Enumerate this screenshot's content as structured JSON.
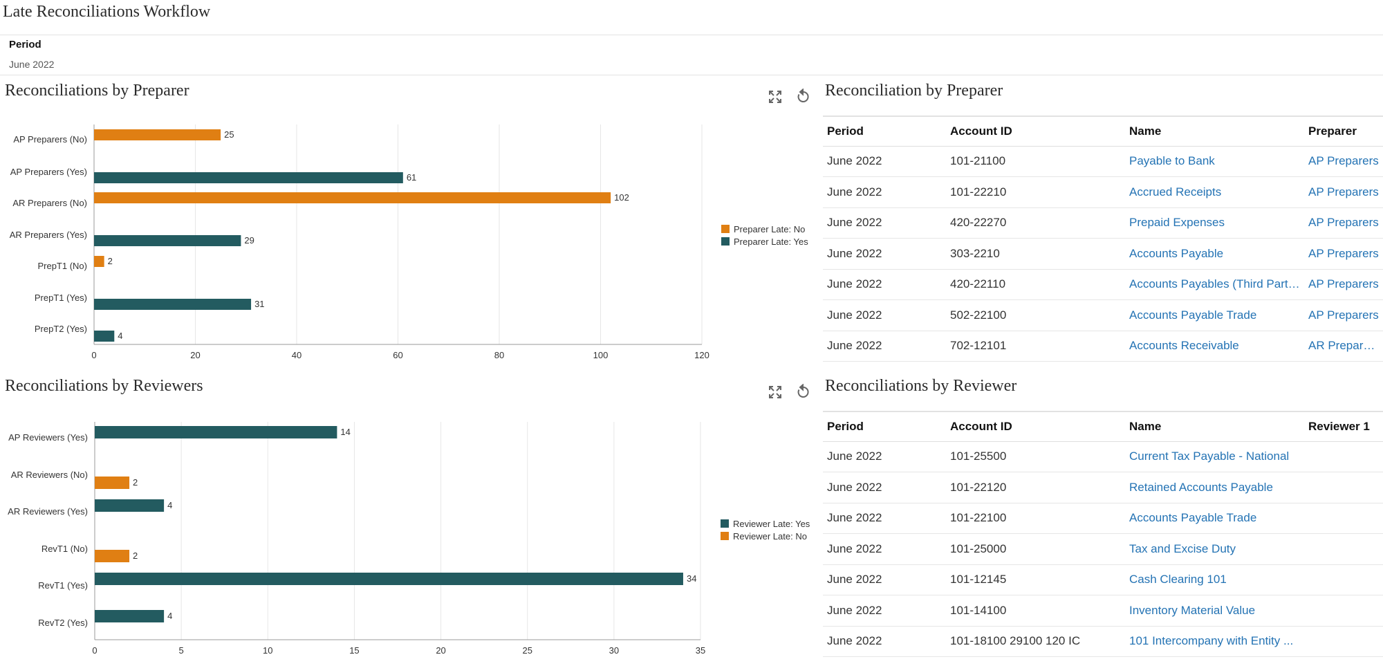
{
  "page": {
    "title": "Late Reconciliations Workflow",
    "period_label": "Period",
    "period_value": "June 2022"
  },
  "preparer_chart": {
    "title": "Reconciliations by Preparer",
    "expand_icon": "expand-icon",
    "refresh_icon": "refresh-icon"
  },
  "reviewer_chart": {
    "title": "Reconciliations by Reviewers",
    "expand_icon": "expand-icon",
    "refresh_icon": "refresh-icon"
  },
  "chart_data": [
    {
      "type": "bar",
      "orientation": "horizontal",
      "categories": [
        "AP Preparers (No)",
        "AP Preparers (Yes)",
        "AR Preparers (No)",
        "AR Preparers (Yes)",
        "PrepT1 (No)",
        "PrepT1 (Yes)",
        "PrepT2 (Yes)"
      ],
      "bars": [
        {
          "category": "AP Preparers (No)",
          "series": "Preparer Late: No",
          "value": 25
        },
        {
          "category": "AP Preparers (Yes)",
          "series": "Preparer Late: Yes",
          "value": 61
        },
        {
          "category": "AR Preparers (No)",
          "series": "Preparer Late: No",
          "value": 102
        },
        {
          "category": "AR Preparers (Yes)",
          "series": "Preparer Late: Yes",
          "value": 29
        },
        {
          "category": "PrepT1 (No)",
          "series": "Preparer Late: No",
          "value": 2
        },
        {
          "category": "PrepT1 (Yes)",
          "series": "Preparer Late: Yes",
          "value": 31
        },
        {
          "category": "PrepT2 (Yes)",
          "series": "Preparer Late: Yes",
          "value": 4
        }
      ],
      "xlim": [
        0,
        120
      ],
      "xticks": [
        0,
        20,
        40,
        60,
        80,
        100,
        120
      ],
      "xtick_labels": [
        "0",
        "20",
        "40",
        "60",
        "80",
        "100",
        "120"
      ],
      "legend": [
        {
          "name": "Preparer Late: No",
          "color": "#e07f13"
        },
        {
          "name": "Preparer Late: Yes",
          "color": "#235b60"
        }
      ],
      "legend_position": "right",
      "grid": true
    },
    {
      "type": "bar",
      "orientation": "horizontal",
      "categories": [
        "AP Reviewers (Yes)",
        "AR Reviewers (No)",
        "AR Reviewers (Yes)",
        "RevT1 (No)",
        "RevT1 (Yes)",
        "RevT2 (Yes)"
      ],
      "bars": [
        {
          "category": "AP Reviewers (Yes)",
          "series": "Reviewer Late: Yes",
          "value": 14
        },
        {
          "category": "AR Reviewers (No)",
          "series": "Reviewer Late: No",
          "value": 2
        },
        {
          "category": "AR Reviewers (Yes)",
          "series": "Reviewer Late: Yes",
          "value": 4
        },
        {
          "category": "RevT1 (No)",
          "series": "Reviewer Late: No",
          "value": 2
        },
        {
          "category": "RevT1 (Yes)",
          "series": "Reviewer Late: Yes",
          "value": 34
        },
        {
          "category": "RevT2 (Yes)",
          "series": "Reviewer Late: Yes",
          "value": 4
        }
      ],
      "xlim": [
        0,
        35
      ],
      "xticks": [
        0,
        5,
        10,
        15,
        20,
        25,
        30,
        35
      ],
      "xtick_labels": [
        "0",
        "5",
        "10",
        "15",
        "20",
        "25",
        "30",
        "35"
      ],
      "legend": [
        {
          "name": "Reviewer Late: Yes",
          "color": "#235b60"
        },
        {
          "name": "Reviewer Late: No",
          "color": "#e07f13"
        }
      ],
      "legend_position": "right",
      "grid": true
    }
  ],
  "preparer_table": {
    "title": "Reconciliation by Preparer",
    "headers": [
      "Period",
      "Account ID",
      "Name",
      "Preparer"
    ],
    "rows": [
      [
        "June 2022",
        "101-21100",
        "Payable to Bank",
        "AP Preparers"
      ],
      [
        "June 2022",
        "101-22210",
        "Accrued Receipts",
        "AP Preparers"
      ],
      [
        "June 2022",
        "420-22270",
        "Prepaid Expenses",
        "AP Preparers"
      ],
      [
        "June 2022",
        "303-2210",
        "Accounts Payable",
        "AP Preparers"
      ],
      [
        "June 2022",
        "420-22110",
        "Accounts Payables (Third Party...",
        "AP Preparers"
      ],
      [
        "June 2022",
        "502-22100",
        "Accounts Payable Trade",
        "AP Preparers"
      ],
      [
        "June 2022",
        "702-12101",
        "Accounts Receivable",
        "AR Preparers"
      ]
    ]
  },
  "reviewer_table": {
    "title": "Reconciliations by Reviewer",
    "headers": [
      "Period",
      "Account ID",
      "Name",
      "Reviewer 1"
    ],
    "rows": [
      [
        "June 2022",
        "101-25500",
        "Current Tax Payable - National",
        ""
      ],
      [
        "June 2022",
        "101-22120",
        "Retained Accounts Payable",
        ""
      ],
      [
        "June 2022",
        "101-22100",
        "Accounts Payable Trade",
        ""
      ],
      [
        "June 2022",
        "101-25000",
        "Tax and Excise Duty",
        ""
      ],
      [
        "June 2022",
        "101-12145",
        "Cash Clearing 101",
        ""
      ],
      [
        "June 2022",
        "101-14100",
        "Inventory Material Value",
        ""
      ],
      [
        "June 2022",
        "101-18100 29100 120 IC",
        "101 Intercompany with Entity ...",
        ""
      ]
    ]
  }
}
